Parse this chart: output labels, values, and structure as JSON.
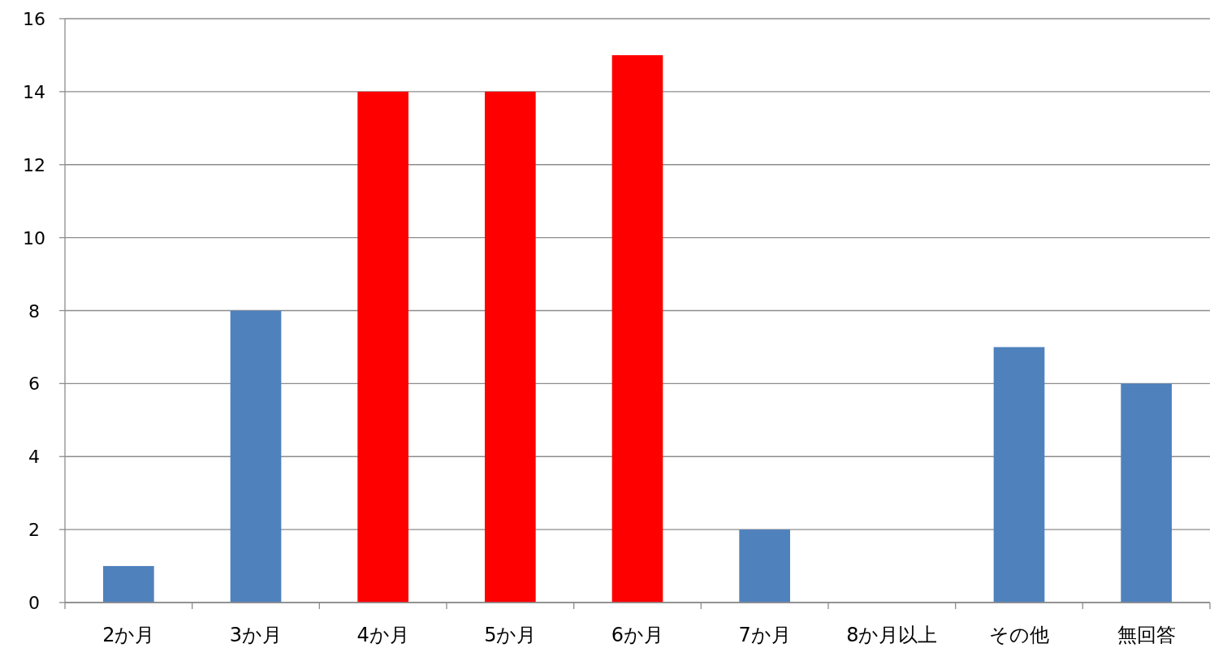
{
  "chart_data": {
    "type": "bar",
    "categories": [
      "2か月",
      "3か月",
      "4か月",
      "5か月",
      "6か月",
      "7か月",
      "8か月以上",
      "その他",
      "無回答"
    ],
    "values": [
      1,
      8,
      14,
      14,
      15,
      2,
      0,
      7,
      6
    ],
    "colors": [
      "#4f81bd",
      "#4f81bd",
      "#ff0000",
      "#ff0000",
      "#ff0000",
      "#4f81bd",
      "#4f81bd",
      "#4f81bd",
      "#4f81bd"
    ],
    "ylim": [
      0,
      16
    ],
    "yticks": [
      0,
      2,
      4,
      6,
      8,
      10,
      12,
      14,
      16
    ],
    "grid": "y"
  }
}
